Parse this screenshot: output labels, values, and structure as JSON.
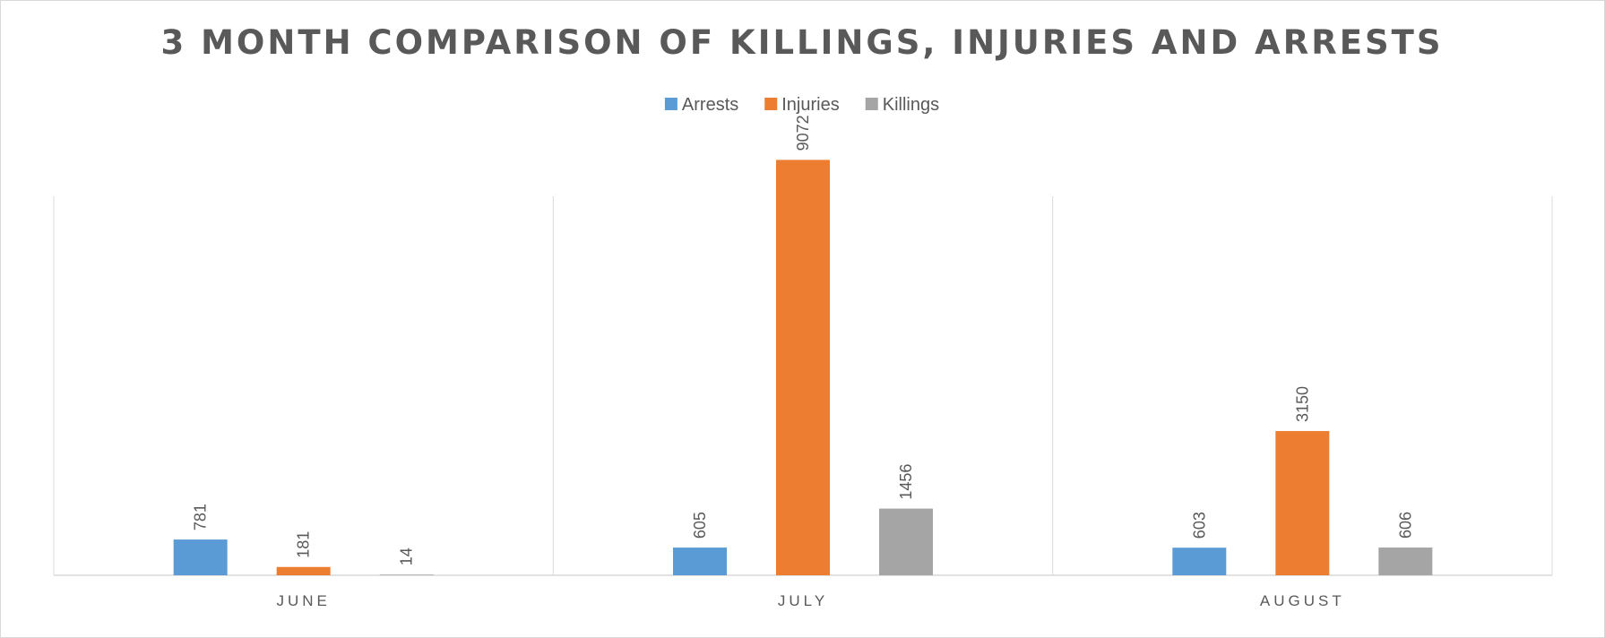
{
  "chart_data": {
    "type": "bar",
    "title": "3 MONTH COMPARISON OF KILLINGS, INJURIES AND ARRESTS",
    "categories": [
      "JUNE",
      "JULY",
      "AUGUST"
    ],
    "series": [
      {
        "name": "Arrests",
        "color": "#5b9bd5",
        "values": [
          781,
          605,
          603
        ]
      },
      {
        "name": "Injuries",
        "color": "#ed7d31",
        "values": [
          181,
          9072,
          3150
        ]
      },
      {
        "name": "Killings",
        "color": "#a5a5a5",
        "values": [
          14,
          1456,
          606
        ]
      }
    ],
    "ylim": [
      0,
      10000
    ],
    "data_labels": true,
    "data_label_orientation": "rotated-vertical",
    "legend_position": "top",
    "grid": false,
    "category_separators": true
  }
}
